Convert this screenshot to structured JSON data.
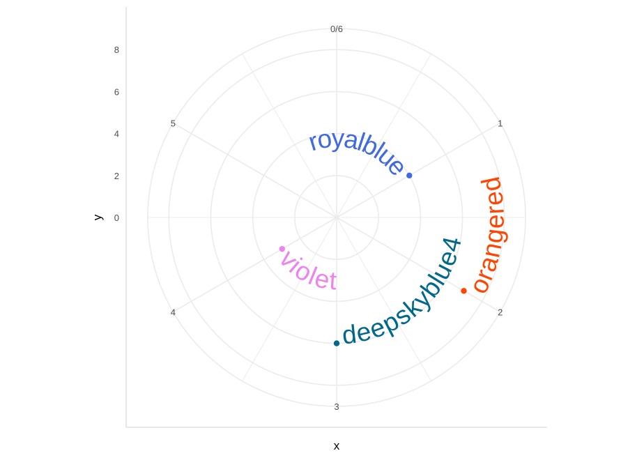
{
  "chart_data": {
    "type": "scatter",
    "coord": "polar",
    "xlabel": "x",
    "ylabel": "y",
    "x_ticks": [
      "0/6",
      "1",
      "2",
      "3",
      "4",
      "5"
    ],
    "y_ticks": [
      "0",
      "2",
      "4",
      "6",
      "8"
    ],
    "xlim": [
      0,
      6
    ],
    "ylim": [
      0,
      9
    ],
    "grid": true,
    "points": [
      {
        "x": 1,
        "y": 4,
        "label": "royalblue",
        "color": "#4169E1"
      },
      {
        "x": 2,
        "y": 7,
        "label": "orangered",
        "color": "#FF4500"
      },
      {
        "x": 3,
        "y": 6,
        "label": "deepskyblue4",
        "color": "#00688B"
      },
      {
        "x": 4,
        "y": 3,
        "label": "violet",
        "color": "#EE82EE"
      }
    ]
  }
}
